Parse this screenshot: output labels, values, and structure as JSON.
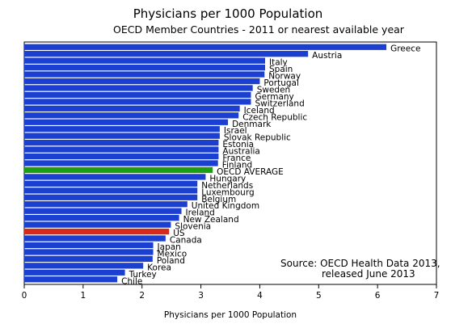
{
  "chart_data": {
    "type": "bar",
    "orientation": "horizontal",
    "title": "Physicians per 1000 Population",
    "subtitle": "OECD Member Countries - 2011 or nearest available year",
    "xlabel": "Physicians per 1000 Population",
    "ylabel": "",
    "xlim": [
      0,
      7
    ],
    "xticks": [
      0,
      1,
      2,
      3,
      4,
      5,
      6,
      7
    ],
    "grid": false,
    "source": [
      "Source:  OECD Health Data 2013,",
      "released June 2013"
    ],
    "colors": {
      "default": "#1a3fd1",
      "OECD AVERAGE": "#1e9c16",
      "US": "#d62a1a"
    },
    "categories": [
      "Greece",
      "Austria",
      "Italy",
      "Spain",
      "Norway",
      "Portugal",
      "Sweden",
      "Germany",
      "Switzerland",
      "Iceland",
      "Czech Republic",
      "Denmark",
      "Israel",
      "Slovak Republic",
      "Estonia",
      "Australia",
      "France",
      "Finland",
      "OECD AVERAGE",
      "Hungary",
      "Netherlands",
      "Luxembourg",
      "Belgium",
      "United Kingdom",
      "Ireland",
      "New Zealand",
      "Slovenia",
      "US",
      "Canada",
      "Japan",
      "Mexico",
      "Poland",
      "Korea",
      "Turkey",
      "Chile"
    ],
    "values": [
      6.15,
      4.82,
      4.09,
      4.09,
      4.08,
      4.0,
      3.88,
      3.85,
      3.85,
      3.66,
      3.64,
      3.46,
      3.32,
      3.32,
      3.3,
      3.3,
      3.3,
      3.29,
      3.2,
      3.08,
      2.94,
      2.94,
      2.94,
      2.77,
      2.67,
      2.63,
      2.49,
      2.46,
      2.4,
      2.19,
      2.19,
      2.18,
      2.02,
      1.71,
      1.58
    ]
  }
}
